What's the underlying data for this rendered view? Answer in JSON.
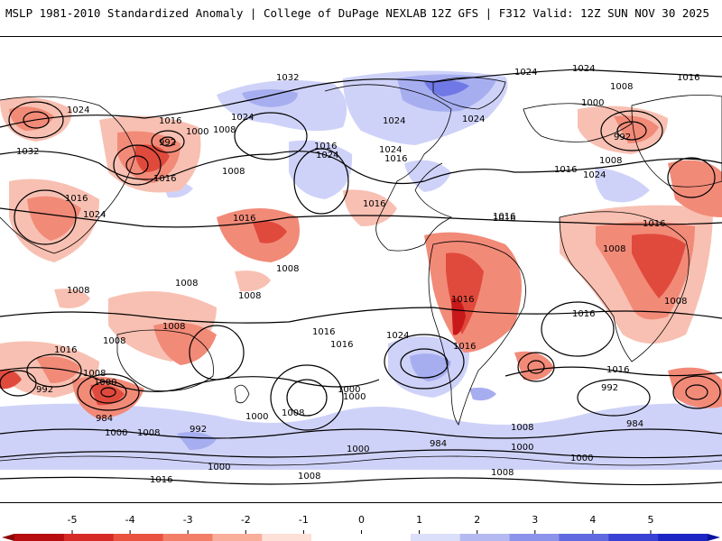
{
  "header": {
    "title_left": "MSLP 1981-2010 Standardized Anomaly | College of DuPage NEXLAB",
    "title_right": "12Z GFS | F312 Valid: 12Z SUN NOV 30 2025"
  },
  "colors": {
    "strong_neg": "#c8181a",
    "mid_neg": "#e04a3c",
    "weak_neg": "#f28a78",
    "faint_neg": "#f8c0b2",
    "faint_pos": "#cfd2f8",
    "weak_pos": "#a7aef0",
    "mid_pos": "#7078e6",
    "strong_pos": "#3a44d6",
    "coast": "#000000",
    "isobar": "#000000"
  },
  "isobar_labels": [
    "1032",
    "1024",
    "1024",
    "1024",
    "1016",
    "1016",
    "1000",
    "1008",
    "1024",
    "1032",
    "992",
    "1016",
    "1024",
    "1016",
    "1016",
    "1024",
    "1008",
    "1008",
    "1016",
    "1016",
    "1016",
    "1024",
    "1016",
    "1024",
    "1024",
    "1000",
    "1008",
    "992",
    "1016",
    "1008",
    "1024",
    "1016",
    "1016",
    "1016",
    "1008",
    "1008",
    "1016",
    "1008",
    "1008",
    "1008",
    "1016",
    "1008",
    "1008",
    "1016",
    "1024",
    "1016",
    "1016",
    "1008",
    "1000",
    "992",
    "984",
    "992",
    "1000",
    "1008",
    "1000",
    "1000",
    "1008",
    "1000",
    "992",
    "984",
    "1000",
    "1000",
    "1008",
    "1016",
    "1008",
    "984",
    "1000",
    "1008",
    "1000",
    "1016"
  ],
  "colorbar": {
    "tick_labels": [
      "-5",
      "-4",
      "-3",
      "-2",
      "-1",
      "0",
      "1",
      "2",
      "3",
      "4",
      "5"
    ],
    "segment_colors": [
      "#b80d10",
      "#d62a26",
      "#e8523f",
      "#f27e68",
      "#f9ad9b",
      "#fde0d8",
      "#ffffff",
      "#ffffff",
      "#dcdff9",
      "#b4baf1",
      "#8b93ea",
      "#6069df",
      "#3941d5",
      "#1d24c4"
    ],
    "value_min": -5,
    "value_max": 5
  }
}
